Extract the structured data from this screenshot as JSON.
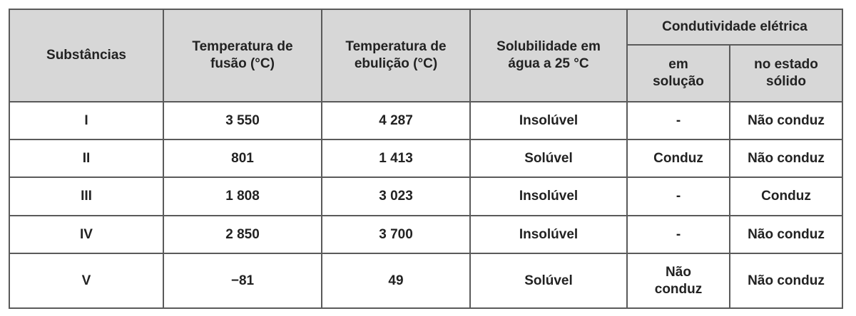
{
  "table": {
    "header": {
      "substance": "Substâncias",
      "melting": [
        "Temperatura de",
        "fusão (°C)"
      ],
      "boiling": [
        "Temperatura de",
        "ebulição (°C)"
      ],
      "solubility": [
        "Solubilidade em",
        "água a 25 °C"
      ],
      "conductivity": "Condutividade elétrica",
      "in_solution": [
        "em",
        "solução"
      ],
      "solid": [
        "no estado",
        "sólido"
      ]
    },
    "rows": [
      [
        "I",
        "3 550",
        "4 287",
        "Insolúvel",
        "-",
        "Não conduz"
      ],
      [
        "II",
        "801",
        "1 413",
        "Solúvel",
        "Conduz",
        "Não conduz"
      ],
      [
        "III",
        "1 808",
        "3 023",
        "Insolúvel",
        "-",
        "Conduz"
      ],
      [
        "IV",
        "2 850",
        "3 700",
        "Insolúvel",
        "-",
        "Não conduz"
      ],
      [
        "V",
        "−81",
        "49",
        "Solúvel",
        [
          "Não",
          "conduz"
        ],
        "Não conduz"
      ]
    ]
  }
}
